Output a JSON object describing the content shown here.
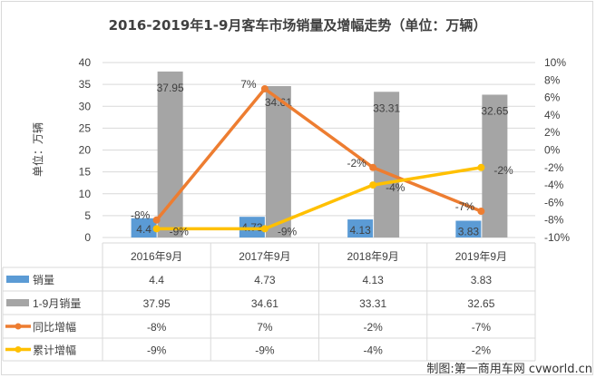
{
  "chart_data": {
    "type": "bar",
    "title": "2016-2019年1-9月客车市场销量及增幅走势（单位：万辆）",
    "ylabel": "单位：万辆",
    "ylim": [
      0,
      40
    ],
    "y_ticks": [
      "0",
      "5",
      "10",
      "15",
      "20",
      "25",
      "30",
      "35",
      "40"
    ],
    "y2lim": [
      -10,
      10
    ],
    "y2_ticks": [
      "-10%",
      "-8%",
      "-6%",
      "-4%",
      "-2%",
      "0%",
      "2%",
      "4%",
      "6%",
      "8%",
      "10%"
    ],
    "categories": [
      "2016年9月",
      "2017年9月",
      "2018年9月",
      "2019年9月"
    ],
    "grid": true,
    "legend": "data-table-bottom",
    "series": [
      {
        "name": "销量",
        "type": "bar",
        "axis": "left",
        "color": "#5b9bd5",
        "values": [
          4.4,
          4.73,
          4.13,
          3.83
        ],
        "labels": [
          "4.4",
          "4.73",
          "4.13",
          "3.83"
        ]
      },
      {
        "name": "1-9月销量",
        "type": "bar",
        "axis": "left",
        "color": "#a5a5a5",
        "values": [
          37.95,
          34.61,
          33.31,
          32.65
        ],
        "labels": [
          "37.95",
          "34.61",
          "33.31",
          "32.65"
        ]
      },
      {
        "name": "同比增幅",
        "type": "line",
        "axis": "right",
        "color": "#ed7d31",
        "values": [
          -8,
          7,
          -2,
          -7
        ],
        "labels": [
          "-8%",
          "7%",
          "-2%",
          "-7%"
        ]
      },
      {
        "name": "累计增幅",
        "type": "line",
        "axis": "right",
        "color": "#ffc000",
        "values": [
          -9,
          -9,
          -4,
          -2
        ],
        "labels": [
          "-9%",
          "-9%",
          "-4%",
          "-2%"
        ]
      }
    ]
  },
  "credit": "制图:第一商用车网 cvworld.cn"
}
